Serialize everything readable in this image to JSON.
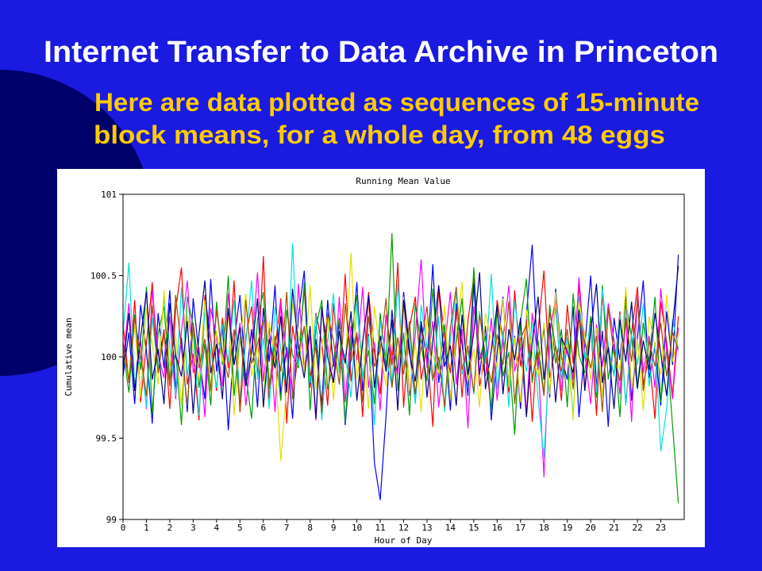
{
  "slide": {
    "title": "Internet Transfer to Data Archive in Princeton",
    "subtitle": [
      "Here are data plotted as sequences of 15-minute",
      "block means, for a whole day, from 48 eggs"
    ]
  },
  "chart_data": {
    "type": "line",
    "title": "Running Mean Value",
    "xlabel": "Hour of Day",
    "ylabel": "Cumulative mean",
    "x": [
      0,
      0.25,
      0.5,
      0.75,
      1,
      1.25,
      1.5,
      1.75,
      2,
      2.25,
      2.5,
      2.75,
      3,
      3.25,
      3.5,
      3.75,
      4,
      4.25,
      4.5,
      4.75,
      5,
      5.25,
      5.5,
      5.75,
      6,
      6.25,
      6.5,
      6.75,
      7,
      7.25,
      7.5,
      7.75,
      8,
      8.25,
      8.5,
      8.75,
      9,
      9.25,
      9.5,
      9.75,
      10,
      10.25,
      10.5,
      10.75,
      11,
      11.25,
      11.5,
      11.75,
      12,
      12.25,
      12.5,
      12.75,
      13,
      13.25,
      13.5,
      13.75,
      14,
      14.25,
      14.5,
      14.75,
      15,
      15.25,
      15.5,
      15.75,
      16,
      16.25,
      16.5,
      16.75,
      17,
      17.25,
      17.5,
      17.75,
      18,
      18.25,
      18.5,
      18.75,
      19,
      19.25,
      19.5,
      19.75,
      20,
      20.25,
      20.5,
      20.75,
      21,
      21.25,
      21.5,
      21.75,
      22,
      22.25,
      22.5,
      22.75,
      23,
      23.25,
      23.5,
      23.75
    ],
    "series": [
      {
        "color": "#ff0000",
        "values": [
          100.21,
          99.84,
          100.35,
          99.72,
          100.08,
          100.46,
          99.91,
          100.17,
          99.68,
          100.29,
          100.55,
          99.83,
          100.02,
          99.61,
          100.38,
          100.11,
          99.79,
          100.24,
          99.93,
          100.47,
          99.66,
          100.13,
          100.31,
          99.88,
          100.62,
          99.74,
          100.05,
          100.36,
          99.59,
          100.19,
          99.97,
          100.42,
          99.81,
          100.27,
          100.09,
          99.7,
          100.33,
          99.92,
          100.51,
          99.85,
          100.14,
          99.63,
          100.4,
          100.03,
          99.77,
          100.26,
          99.95,
          100.58,
          99.69,
          100.18,
          100.37,
          99.86,
          100.06,
          99.57,
          100.44,
          100.12,
          99.9,
          100.3,
          99.75,
          100.22,
          100.49,
          99.82,
          100.01,
          99.67,
          100.35,
          100.1,
          99.78,
          100.41,
          99.94,
          100.23,
          99.6,
          100.16,
          100.53,
          99.87,
          100.07,
          99.73,
          100.32,
          99.96,
          100.45,
          99.8,
          100.2,
          99.64,
          100.39,
          100.04,
          99.89,
          100.28,
          99.71,
          100.15,
          100.43,
          99.83,
          100.0,
          99.62,
          100.34,
          100.09,
          99.76,
          100.25
        ]
      },
      {
        "color": "#0000ff",
        "values": [
          99.88,
          100.15,
          99.71,
          100.32,
          100.04,
          99.59,
          100.27,
          99.93,
          100.41,
          99.8,
          100.12,
          99.66,
          100.36,
          100.01,
          99.74,
          100.48,
          99.91,
          100.2,
          99.55,
          100.09,
          100.38,
          99.85,
          100.17,
          99.69,
          100.3,
          99.97,
          100.44,
          99.77,
          100.06,
          99.62,
          100.25,
          100.53,
          99.83,
          100.11,
          99.7,
          100.35,
          99.94,
          100.21,
          99.58,
          100.02,
          100.46,
          99.79,
          100.14,
          99.35,
          99.12,
          99.64,
          100.29,
          99.9,
          100.4,
          100.05,
          99.72,
          100.22,
          99.96,
          100.57,
          99.84,
          100.1,
          99.67,
          100.33,
          100.08,
          99.76,
          100.45,
          99.89,
          100.19,
          99.61,
          100.03,
          100.37,
          99.81,
          100.13,
          99.68,
          100.26,
          100.69,
          99.92,
          100.18,
          99.75,
          100.42,
          100.0,
          99.86,
          100.31,
          99.63,
          100.07,
          100.5,
          99.82,
          100.16,
          99.57,
          100.24,
          99.98,
          100.39,
          99.73,
          100.12,
          100.47,
          99.87,
          100.06,
          99.7,
          100.28,
          99.95,
          100.63
        ]
      },
      {
        "color": "#00a000",
        "values": [
          100.05,
          99.78,
          100.26,
          99.92,
          100.43,
          99.65,
          100.14,
          100.31,
          99.86,
          100.02,
          99.58,
          100.37,
          100.19,
          99.81,
          100.08,
          99.7,
          100.34,
          99.95,
          100.5,
          99.76,
          100.12,
          99.89,
          99.62,
          100.23,
          100.4,
          99.83,
          100.06,
          99.73,
          100.29,
          100.01,
          99.93,
          100.46,
          99.67,
          100.18,
          100.35,
          99.8,
          99.97,
          100.24,
          99.6,
          100.11,
          100.38,
          99.87,
          100.04,
          99.71,
          100.27,
          99.94,
          100.76,
          99.79,
          100.15,
          99.64,
          100.33,
          100.07,
          99.85,
          100.42,
          99.91,
          100.2,
          99.74,
          100.09,
          100.36,
          99.82,
          100.55,
          99.98,
          100.13,
          99.66,
          100.3,
          99.88,
          100.03,
          99.52,
          100.22,
          100.48,
          99.84,
          100.1,
          99.77,
          100.32,
          99.96,
          100.17,
          99.69,
          100.39,
          100.01,
          99.9,
          100.25,
          99.75,
          100.44,
          99.86,
          100.08,
          99.63,
          100.34,
          100.12,
          99.8,
          100.21,
          99.97,
          100.37,
          99.72,
          100.05,
          99.58,
          99.1
        ]
      },
      {
        "color": "#ff00ff",
        "values": [
          99.97,
          100.33,
          99.8,
          100.1,
          99.68,
          100.41,
          100.02,
          99.87,
          100.25,
          99.74,
          100.16,
          100.47,
          99.9,
          100.06,
          99.63,
          100.3,
          100.12,
          99.82,
          100.39,
          99.95,
          100.21,
          99.7,
          100.04,
          100.52,
          99.85,
          100.18,
          99.66,
          100.34,
          100.0,
          99.78,
          100.45,
          99.92,
          100.13,
          99.61,
          100.28,
          100.07,
          99.84,
          100.37,
          99.72,
          100.19,
          99.98,
          100.43,
          99.81,
          100.09,
          99.67,
          100.26,
          100.01,
          99.89,
          100.35,
          99.76,
          100.14,
          100.6,
          99.93,
          100.22,
          99.69,
          100.05,
          100.4,
          99.83,
          100.17,
          99.56,
          100.31,
          100.03,
          99.88,
          100.24,
          99.73,
          100.11,
          100.44,
          99.91,
          100.06,
          99.64,
          100.27,
          99.99,
          99.26,
          100.15,
          100.36,
          99.79,
          100.08,
          99.86,
          100.49,
          100.02,
          99.71,
          100.2,
          99.94,
          100.33,
          100.1,
          99.77,
          100.23,
          99.6,
          100.38,
          99.9,
          100.13,
          99.81,
          100.42,
          100.04,
          99.74,
          100.18
        ]
      },
      {
        "color": "#00e0e0",
        "values": [
          100.14,
          100.58,
          99.83,
          100.01,
          99.69,
          100.24,
          99.92,
          100.36,
          100.07,
          99.76,
          100.43,
          99.88,
          100.15,
          99.64,
          100.29,
          100.03,
          99.81,
          100.2,
          99.97,
          100.35,
          99.73,
          100.09,
          100.47,
          99.86,
          100.12,
          99.68,
          100.31,
          100.05,
          99.79,
          100.7,
          99.95,
          100.18,
          99.84,
          100.26,
          99.61,
          100.1,
          100.39,
          99.9,
          100.02,
          99.75,
          100.33,
          99.87,
          100.13,
          99.58,
          100.22,
          100.0,
          99.82,
          100.45,
          99.93,
          100.17,
          99.71,
          100.32,
          100.06,
          99.85,
          100.25,
          99.66,
          100.11,
          100.4,
          99.89,
          100.04,
          99.77,
          100.28,
          99.96,
          100.51,
          99.8,
          100.16,
          99.69,
          100.34,
          100.08,
          99.91,
          100.21,
          99.74,
          99.38,
          100.03,
          100.3,
          99.86,
          100.12,
          99.63,
          100.37,
          99.99,
          100.19,
          99.78,
          100.42,
          100.07,
          99.88,
          100.26,
          99.7,
          100.14,
          99.95,
          100.33,
          99.82,
          100.09,
          99.42,
          99.68,
          100.23,
          100.05
        ]
      },
      {
        "color": "#e0e000",
        "values": [
          100.02,
          99.89,
          100.19,
          99.75,
          100.3,
          100.08,
          99.83,
          100.41,
          99.94,
          100.13,
          99.7,
          100.25,
          100.04,
          99.86,
          100.35,
          99.78,
          100.16,
          99.97,
          100.28,
          99.64,
          100.1,
          100.39,
          99.88,
          100.06,
          99.76,
          100.22,
          100.0,
          99.36,
          99.84,
          100.33,
          100.14,
          99.91,
          100.44,
          99.8,
          100.07,
          100.26,
          99.73,
          100.17,
          99.95,
          100.64,
          99.87,
          100.11,
          99.68,
          100.31,
          100.03,
          99.82,
          100.2,
          99.98,
          100.37,
          99.79,
          100.09,
          99.66,
          100.24,
          100.01,
          99.9,
          100.32,
          99.74,
          100.15,
          100.46,
          99.85,
          100.05,
          99.69,
          100.27,
          100.1,
          99.93,
          100.36,
          99.81,
          100.12,
          99.72,
          100.29,
          100.02,
          99.88,
          100.21,
          99.77,
          100.4,
          99.96,
          100.08,
          99.61,
          100.34,
          100.13,
          99.86,
          100.18,
          99.75,
          100.3,
          100.01,
          99.92,
          100.43,
          99.8,
          100.11,
          99.67,
          100.25,
          100.06,
          99.89,
          100.38,
          99.97,
          100.14
        ]
      },
      {
        "color": "#000080",
        "values": [
          99.92,
          100.27,
          99.79,
          100.12,
          100.4,
          99.86,
          100.05,
          99.71,
          100.33,
          100.01,
          99.88,
          100.22,
          99.65,
          100.14,
          100.47,
          99.9,
          100.08,
          99.74,
          100.3,
          99.95,
          100.18,
          99.82,
          100.03,
          100.36,
          99.69,
          100.11,
          99.93,
          100.25,
          99.78,
          100.42,
          100.06,
          99.87,
          100.19,
          99.62,
          100.31,
          100.0,
          99.84,
          100.16,
          99.96,
          100.28,
          99.73,
          100.09,
          100.38,
          99.81,
          100.13,
          99.91,
          100.23,
          99.67,
          100.35,
          100.02,
          99.85,
          100.2,
          99.75,
          100.1,
          100.44,
          99.94,
          100.07,
          99.7,
          100.26,
          99.89,
          100.15,
          100.52,
          99.8,
          100.04,
          100.32,
          99.77,
          100.17,
          99.98,
          100.24,
          99.63,
          100.09,
          100.37,
          99.86,
          100.21,
          99.72,
          100.12,
          100.03,
          99.9,
          100.29,
          99.79,
          100.16,
          100.45,
          99.84,
          100.06,
          99.68,
          100.23,
          99.97,
          100.34,
          99.81,
          100.1,
          99.92,
          100.27,
          100.02,
          99.76,
          100.19,
          100.56
        ]
      },
      {
        "color": "#a05000",
        "values": [
          100.09,
          99.85,
          100.24,
          100.01,
          99.76,
          100.32,
          99.9,
          100.14,
          99.82,
          100.38,
          100.05,
          99.7,
          100.21,
          99.93,
          100.11,
          99.79,
          100.29,
          100.03,
          99.87,
          100.17,
          99.68,
          100.35,
          99.96,
          100.08,
          100.23,
          99.8,
          100.13,
          99.91,
          100.4,
          99.74,
          100.02,
          100.19,
          99.88,
          100.06,
          99.65,
          100.27,
          100.1,
          99.83,
          100.33,
          99.97,
          100.15,
          99.72,
          100.25,
          99.94,
          100.04,
          100.36,
          99.81,
          100.12,
          99.89,
          100.22,
          99.77,
          100.08,
          100.31,
          99.86,
          100.0,
          99.69,
          100.18,
          100.43,
          99.92,
          100.07,
          99.78,
          100.26,
          100.01,
          99.84,
          100.14,
          99.95,
          100.34,
          99.71,
          100.11,
          100.2,
          99.87,
          100.03,
          99.76,
          100.28,
          100.06,
          99.91,
          100.17,
          99.8,
          100.23,
          100.09,
          99.93,
          100.13,
          99.66,
          100.3,
          100.02,
          99.85,
          100.24,
          99.97,
          100.36,
          99.79,
          100.1,
          99.94,
          100.21,
          99.88,
          100.15,
          100.04
        ]
      }
    ],
    "xlim": [
      0,
      24
    ],
    "xticks": [
      0,
      1,
      2,
      3,
      4,
      5,
      6,
      7,
      8,
      9,
      10,
      11,
      12,
      13,
      14,
      15,
      16,
      17,
      18,
      19,
      20,
      21,
      22,
      23
    ],
    "ylim": [
      99,
      101
    ],
    "yticks": [
      99,
      99.5,
      100,
      100.5,
      101
    ],
    "grid": false
  }
}
